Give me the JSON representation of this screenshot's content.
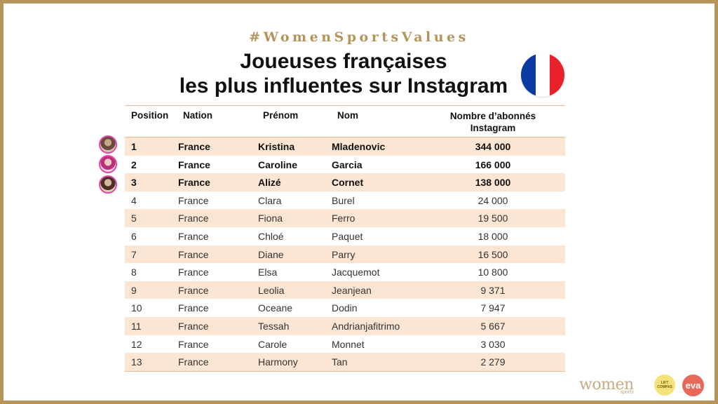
{
  "hashtag": "#WomenSportsValues",
  "title_line1": "Joueuses françaises",
  "title_line2": "les plus influentes sur Instagram",
  "flag_colors": [
    "#0b3aa0",
    "#ffffff",
    "#e8212b"
  ],
  "headers": {
    "position": "Position",
    "nation": "Nation",
    "prenom": "Prénom",
    "nom": "Nom",
    "followers_line1": "Nombre d’abonnés",
    "followers_line2": "Instagram"
  },
  "rows": [
    {
      "pos": "1",
      "nation": "France",
      "prenom": "Kristina",
      "nom": "Mladenovic",
      "followers": "344 000"
    },
    {
      "pos": "2",
      "nation": "France",
      "prenom": "Caroline",
      "nom": "Garcia",
      "followers": "166 000"
    },
    {
      "pos": "3",
      "nation": "France",
      "prenom": "Alizé",
      "nom": "Cornet",
      "followers": "138 000"
    },
    {
      "pos": "4",
      "nation": "France",
      "prenom": "Clara",
      "nom": "Burel",
      "followers": "24 000"
    },
    {
      "pos": "5",
      "nation": "France",
      "prenom": "Fiona",
      "nom": "Ferro",
      "followers": "19 500"
    },
    {
      "pos": "6",
      "nation": "France",
      "prenom": "Chloé",
      "nom": "Paquet",
      "followers": "18 000"
    },
    {
      "pos": "7",
      "nation": "France",
      "prenom": "Diane",
      "nom": "Parry",
      "followers": "16 500"
    },
    {
      "pos": "8",
      "nation": "France",
      "prenom": "Elsa",
      "nom": "Jacquemot",
      "followers": "10 800"
    },
    {
      "pos": "9",
      "nation": "France",
      "prenom": "Leolia",
      "nom": "Jeanjean",
      "followers": "9 371"
    },
    {
      "pos": "10",
      "nation": "France",
      "prenom": "Oceane",
      "nom": "Dodin",
      "followers": "7 947"
    },
    {
      "pos": "11",
      "nation": "France",
      "prenom": "Tessah",
      "nom": "Andrianjafitrimo",
      "followers": "5 667"
    },
    {
      "pos": "12",
      "nation": "France",
      "prenom": "Carole",
      "nom": "Monnet",
      "followers": "3 030"
    },
    {
      "pos": "13",
      "nation": "France",
      "prenom": "Harmony",
      "nom": "Tan",
      "followers": "2 279"
    }
  ],
  "footer": {
    "logo_women": "women",
    "logo_women_sub": "sports",
    "logo_lft": "LIFT COMPAS",
    "logo_eva": "eva"
  }
}
